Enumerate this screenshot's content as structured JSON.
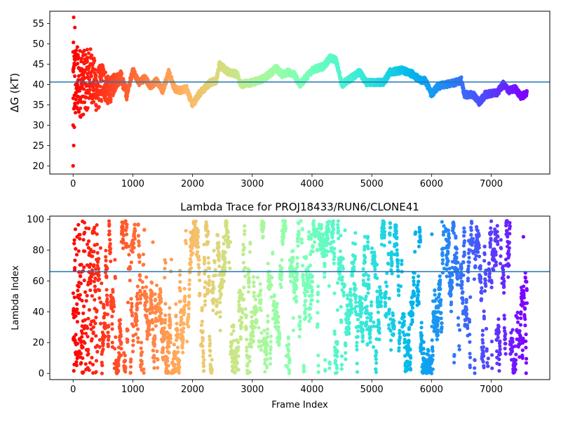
{
  "chart_data": [
    {
      "type": "scatter",
      "title": "",
      "xlabel": "",
      "ylabel": "ΔG (kT)",
      "xlim": [
        -390,
        7980
      ],
      "ylim": [
        18,
        58
      ],
      "xticks": [
        0,
        1000,
        2000,
        3000,
        4000,
        5000,
        6000,
        7000
      ],
      "yticks": [
        20,
        25,
        30,
        35,
        40,
        45,
        50,
        55
      ],
      "hline": 40.6,
      "hline_color": "#1f77b4",
      "colormap": "rainbow (reversed: red at frame 0, violet at last frame)",
      "n_frames": 7600,
      "trace_knots": [
        [
          200,
          40.5
        ],
        [
          300,
          42.5
        ],
        [
          400,
          38.5
        ],
        [
          500,
          41
        ],
        [
          600,
          38
        ],
        [
          700,
          40.5
        ],
        [
          800,
          42
        ],
        [
          900,
          37.5
        ],
        [
          1000,
          43.5
        ],
        [
          1100,
          40.5
        ],
        [
          1200,
          41.5
        ],
        [
          1300,
          39.5
        ],
        [
          1400,
          41
        ],
        [
          1500,
          38.5
        ],
        [
          1600,
          43
        ],
        [
          1700,
          39
        ],
        [
          1800,
          38.5
        ],
        [
          1900,
          39
        ],
        [
          2000,
          35
        ],
        [
          2100,
          37.5
        ],
        [
          2200,
          39
        ],
        [
          2300,
          40.5
        ],
        [
          2400,
          41
        ],
        [
          2450,
          45
        ],
        [
          2600,
          43
        ],
        [
          2750,
          42.5
        ],
        [
          2800,
          40
        ],
        [
          3000,
          40.5
        ],
        [
          3200,
          41.5
        ],
        [
          3400,
          44
        ],
        [
          3500,
          42.5
        ],
        [
          3600,
          43
        ],
        [
          3700,
          42.5
        ],
        [
          3800,
          40
        ],
        [
          4000,
          43.5
        ],
        [
          4200,
          44.5
        ],
        [
          4300,
          46.5
        ],
        [
          4400,
          46
        ],
        [
          4500,
          40
        ],
        [
          4700,
          42
        ],
        [
          4800,
          43
        ],
        [
          4900,
          40.5
        ],
        [
          5200,
          40.5
        ],
        [
          5300,
          43
        ],
        [
          5500,
          43.5
        ],
        [
          5700,
          42.5
        ],
        [
          5800,
          41
        ],
        [
          5900,
          41
        ],
        [
          6000,
          37.5
        ],
        [
          6100,
          39.5
        ],
        [
          6400,
          40.5
        ],
        [
          6500,
          41
        ],
        [
          6550,
          37.5
        ],
        [
          6700,
          37.5
        ],
        [
          6800,
          35.5
        ],
        [
          6900,
          37.5
        ],
        [
          7100,
          38
        ],
        [
          7200,
          40
        ],
        [
          7300,
          38.5
        ],
        [
          7400,
          39
        ],
        [
          7500,
          37
        ],
        [
          7600,
          38
        ]
      ],
      "early_spread": 10,
      "outlier_points": [
        [
          0,
          20
        ],
        [
          10,
          25
        ],
        [
          0,
          30
        ],
        [
          20,
          29.5
        ],
        [
          10,
          56.5
        ],
        [
          30,
          54
        ],
        [
          0,
          48
        ]
      ]
    },
    {
      "type": "scatter",
      "title": "Lambda Trace for PROJ18433/RUN6/CLONE41",
      "xlabel": "Frame Index",
      "ylabel": "Lambda Index",
      "xlim": [
        -390,
        7980
      ],
      "ylim": [
        -4,
        102
      ],
      "xticks": [
        0,
        1000,
        2000,
        3000,
        4000,
        5000,
        6000,
        7000
      ],
      "yticks": [
        0,
        20,
        40,
        60,
        80,
        100
      ],
      "hline": 66,
      "hline_color": "#1f77b4",
      "colormap": "rainbow (reversed: red at frame 0, violet at last frame)",
      "n_frames": 7600,
      "lambda_range": [
        0,
        99
      ]
    }
  ]
}
